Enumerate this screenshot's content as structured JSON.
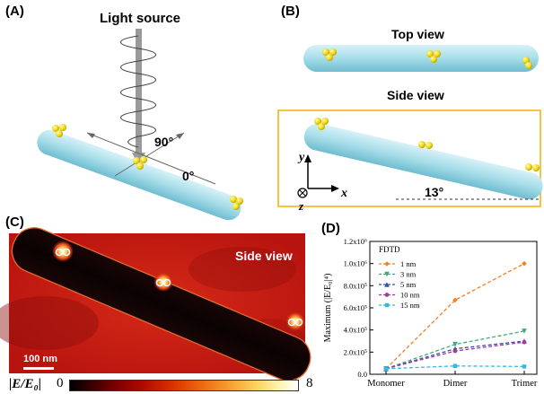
{
  "panels": {
    "a": {
      "label": "(A)",
      "light_source": "Light source",
      "angle_90": "90°",
      "angle_0": "0°"
    },
    "b": {
      "label": "(B)",
      "top_view": "Top view",
      "side_view": "Side view",
      "axis_y": "y",
      "axis_z": "z",
      "axis_x": "x",
      "angle": "13°"
    },
    "c": {
      "label": "(C)",
      "side_view": "Side view",
      "scale_bar": "100 nm",
      "colorbar_title": "|E/E₀|",
      "colorbar_min": "0",
      "colorbar_max": "8"
    },
    "d": {
      "label": "(D)"
    }
  },
  "colors": {
    "rod_fill": "#a6dde9",
    "particle": "#f0d817",
    "frame": "#f5c343"
  },
  "chart_data": {
    "type": "line",
    "categories": [
      "Monomer",
      "Dimer",
      "Trimer"
    ],
    "ylabel": "Maximum (|E/E₀|⁴)",
    "ylim": [
      0,
      1200000
    ],
    "yticks": [
      "0.0",
      "2.0x10⁵",
      "4.0x10⁵",
      "6.0x10⁵",
      "8.0x10⁵",
      "1.0x10⁶",
      "1.2x10⁶"
    ],
    "legend_title": "FDTD",
    "legend_position": "top-left",
    "grid": false,
    "series": [
      {
        "name": "1 nm",
        "color": "#f57e20",
        "marker": "diamond",
        "values": [
          50000,
          670000,
          1000000
        ]
      },
      {
        "name": "3 nm",
        "color": "#3daa7b",
        "marker": "tri-down",
        "values": [
          50000,
          270000,
          390000
        ]
      },
      {
        "name": "5 nm",
        "color": "#3a4ea8",
        "marker": "tri-up",
        "values": [
          50000,
          230000,
          300000
        ]
      },
      {
        "name": "10 nm",
        "color": "#a23c97",
        "marker": "circle",
        "values": [
          50000,
          210000,
          290000
        ]
      },
      {
        "name": "15 nm",
        "color": "#35b8e6",
        "marker": "square",
        "values": [
          50000,
          75000,
          70000
        ]
      }
    ]
  }
}
